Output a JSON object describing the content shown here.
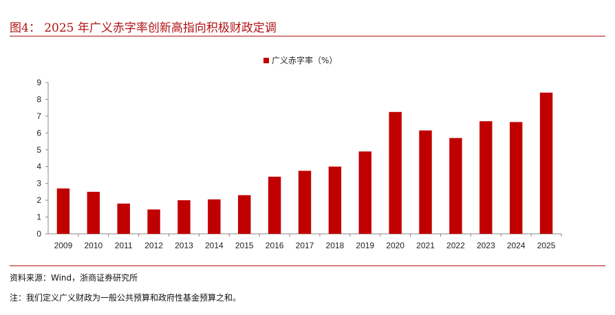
{
  "header": {
    "title": "图4：  2025 年广义赤字率创新高指向积极财政定调"
  },
  "footer": {
    "source": "资料来源：Wind，浙商证券研究所",
    "note": "注：我们定义广义财政为一般公共预算和政府性基金预算之和。"
  },
  "chart_data": {
    "type": "bar",
    "categories": [
      "2009",
      "2010",
      "2011",
      "2012",
      "2013",
      "2014",
      "2015",
      "2016",
      "2017",
      "2018",
      "2019",
      "2020",
      "2021",
      "2022",
      "2023",
      "2024",
      "2025"
    ],
    "series": [
      {
        "name": "广义赤字率（%）",
        "values": [
          2.7,
          2.5,
          1.8,
          1.45,
          2.0,
          2.05,
          2.3,
          3.4,
          3.75,
          4.0,
          4.9,
          7.25,
          6.15,
          5.7,
          6.7,
          6.65,
          8.4
        ],
        "color": "#c00000"
      }
    ],
    "yticks": [
      0,
      1,
      2,
      3,
      4,
      5,
      6,
      7,
      8,
      9
    ],
    "ylim": [
      0,
      9
    ],
    "legend": "top-center",
    "grid": false
  }
}
